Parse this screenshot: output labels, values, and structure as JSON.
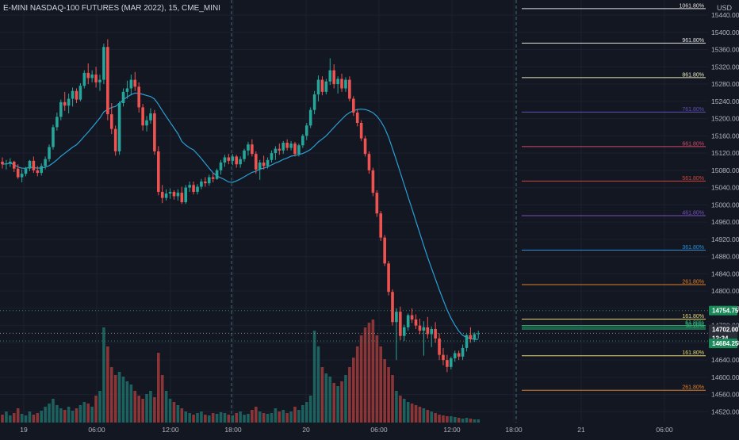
{
  "title": "E-MINI NASDAQ-100 FUTURES (MAR 2022), 15, CME_MINI",
  "currency": "USD",
  "colors": {
    "background": "#131722",
    "up": "#26a69a",
    "down": "#ef5350",
    "volume_up": "#1f6f68",
    "volume_down": "#a23b3b",
    "ma": "#2a9fd6",
    "grid": "#1c2030",
    "axis_text": "#b2b5be",
    "session_line": "#3d6f7a",
    "last_price_tag": "#26a69a",
    "level_tag": "#1b8a5a",
    "neutral_tag": "#2a2e39"
  },
  "chart_data": {
    "type": "candlestick",
    "symbol": "E-MINI NASDAQ-100 FUTURES (MAR 2022)",
    "interval": "15",
    "exchange": "CME_MINI",
    "ylim": [
      14495,
      15475
    ],
    "y_ticks": [
      15440,
      15400,
      15360,
      15320,
      15280,
      15240,
      15200,
      15160,
      15120,
      15080,
      15040,
      15000,
      14960,
      14920,
      14880,
      14840,
      14800,
      14760,
      14720,
      14680,
      14640,
      14600,
      14560,
      14520
    ],
    "x_ticks": [
      "19",
      "06:00",
      "12:00",
      "18:00",
      "20",
      "06:00",
      "12:00",
      "18:00",
      "21",
      "06:00"
    ],
    "session_markers": [
      "18:00",
      "18:00"
    ],
    "price_labels": [
      {
        "label": "14754.75",
        "value": 14754.75,
        "style": "level"
      },
      {
        "label": "14702.00",
        "value": 14702,
        "style": "last"
      },
      {
        "label": "12:34",
        "value": 14702,
        "style": "countdown"
      },
      {
        "label": "14684.25",
        "value": 14684.25,
        "style": "level"
      }
    ],
    "fib_levels": [
      {
        "label": "1061.80%",
        "value": 15455,
        "color": "#e0e0e0"
      },
      {
        "label": "961.80%",
        "value": 15375,
        "color": "#e0e0e0"
      },
      {
        "label": "861.80%",
        "value": 15295,
        "color": "#e8e8c0"
      },
      {
        "label": "761.80%",
        "value": 15215,
        "color": "#5c4fb0"
      },
      {
        "label": "661.80%",
        "value": 15135,
        "color": "#d04a6a"
      },
      {
        "label": "561.80%",
        "value": 15055,
        "color": "#d0443a"
      },
      {
        "label": "461.80%",
        "value": 14975,
        "color": "#7a4fc0"
      },
      {
        "label": "361.80%",
        "value": 14895,
        "color": "#2a8fd6"
      },
      {
        "label": "261.80%",
        "value": 14815,
        "color": "#e0802a"
      },
      {
        "label": "161.80%",
        "value": 14735,
        "color": "#e8d870"
      },
      {
        "label": "61.80%",
        "value": 14720,
        "color": "#2fb87a"
      },
      {
        "label": "50.00%",
        "value": 14716,
        "color": "#2fb87a"
      },
      {
        "label": "38.20%",
        "value": 14712,
        "color": "#2fb87a"
      },
      {
        "label": "161.80%",
        "value": 14650,
        "color": "#e8d870"
      },
      {
        "label": "261.80%",
        "value": 14570,
        "color": "#e0802a"
      }
    ],
    "candles": [
      [
        15100,
        15110,
        15084,
        15094
      ],
      [
        15094,
        15104,
        15082,
        15096
      ],
      [
        15096,
        15108,
        15088,
        15100
      ],
      [
        15100,
        15102,
        15076,
        15084
      ],
      [
        15084,
        15094,
        15060,
        15064
      ],
      [
        15064,
        15082,
        15052,
        15072
      ],
      [
        15072,
        15088,
        15066,
        15084
      ],
      [
        15084,
        15104,
        15078,
        15102
      ],
      [
        15102,
        15112,
        15074,
        15080
      ],
      [
        15080,
        15090,
        15066,
        15074
      ],
      [
        15074,
        15096,
        15068,
        15090
      ],
      [
        15090,
        15112,
        15082,
        15106
      ],
      [
        15106,
        15140,
        15100,
        15134
      ],
      [
        15134,
        15186,
        15128,
        15180
      ],
      [
        15180,
        15214,
        15172,
        15204
      ],
      [
        15204,
        15244,
        15196,
        15238
      ],
      [
        15238,
        15262,
        15218,
        15230
      ],
      [
        15230,
        15258,
        15212,
        15246
      ],
      [
        15246,
        15272,
        15228,
        15264
      ],
      [
        15264,
        15270,
        15236,
        15244
      ],
      [
        15244,
        15282,
        15240,
        15276
      ],
      [
        15276,
        15312,
        15270,
        15306
      ],
      [
        15306,
        15328,
        15280,
        15294
      ],
      [
        15294,
        15312,
        15284,
        15302
      ],
      [
        15302,
        15320,
        15272,
        15284
      ],
      [
        15284,
        15302,
        15264,
        15290
      ],
      [
        15290,
        15374,
        15280,
        15366
      ],
      [
        15366,
        15384,
        15196,
        15210
      ],
      [
        15210,
        15236,
        15164,
        15176
      ],
      [
        15176,
        15184,
        15114,
        15124
      ],
      [
        15124,
        15240,
        15116,
        15236
      ],
      [
        15236,
        15270,
        15228,
        15262
      ],
      [
        15262,
        15288,
        15246,
        15270
      ],
      [
        15270,
        15302,
        15254,
        15290
      ],
      [
        15290,
        15308,
        15264,
        15274
      ],
      [
        15274,
        15284,
        15214,
        15226
      ],
      [
        15226,
        15234,
        15172,
        15184
      ],
      [
        15184,
        15206,
        15170,
        15196
      ],
      [
        15196,
        15224,
        15188,
        15212
      ],
      [
        15212,
        15220,
        15116,
        15124
      ],
      [
        15124,
        15136,
        15022,
        15030
      ],
      [
        15030,
        15046,
        15004,
        15016
      ],
      [
        15016,
        15036,
        15010,
        15026
      ],
      [
        15026,
        15038,
        15014,
        15030
      ],
      [
        15030,
        15034,
        15012,
        15020
      ],
      [
        15020,
        15036,
        15010,
        15028
      ],
      [
        15028,
        15042,
        15002,
        15006
      ],
      [
        15006,
        15046,
        15002,
        15040
      ],
      [
        15040,
        15054,
        15030,
        15046
      ],
      [
        15046,
        15054,
        15024,
        15030
      ],
      [
        15030,
        15048,
        15024,
        15042
      ],
      [
        15042,
        15060,
        15036,
        15054
      ],
      [
        15054,
        15064,
        15042,
        15050
      ],
      [
        15050,
        15070,
        15044,
        15064
      ],
      [
        15064,
        15074,
        15052,
        15060
      ],
      [
        15060,
        15084,
        15058,
        15080
      ],
      [
        15080,
        15104,
        15070,
        15098
      ],
      [
        15098,
        15116,
        15088,
        15110
      ],
      [
        15110,
        15118,
        15094,
        15102
      ],
      [
        15102,
        15118,
        15092,
        15112
      ],
      [
        15112,
        15116,
        15086,
        15094
      ],
      [
        15094,
        15112,
        15086,
        15106
      ],
      [
        15106,
        15130,
        15100,
        15126
      ],
      [
        15126,
        15146,
        15114,
        15140
      ],
      [
        15140,
        15152,
        15112,
        15118
      ],
      [
        15118,
        15124,
        15072,
        15082
      ],
      [
        15082,
        15104,
        15058,
        15098
      ],
      [
        15098,
        15114,
        15082,
        15090
      ],
      [
        15090,
        15110,
        15084,
        15104
      ],
      [
        15104,
        15126,
        15098,
        15120
      ],
      [
        15120,
        15136,
        15104,
        15130
      ],
      [
        15130,
        15142,
        15116,
        15126
      ],
      [
        15126,
        15148,
        15118,
        15144
      ],
      [
        15144,
        15152,
        15126,
        15132
      ],
      [
        15132,
        15148,
        15126,
        15142
      ],
      [
        15142,
        15146,
        15112,
        15118
      ],
      [
        15118,
        15142,
        15112,
        15138
      ],
      [
        15138,
        15164,
        15132,
        15160
      ],
      [
        15160,
        15190,
        15150,
        15184
      ],
      [
        15184,
        15226,
        15178,
        15220
      ],
      [
        15220,
        15264,
        15210,
        15256
      ],
      [
        15256,
        15300,
        15240,
        15290
      ],
      [
        15290,
        15298,
        15254,
        15262
      ],
      [
        15262,
        15292,
        15256,
        15286
      ],
      [
        15286,
        15340,
        15278,
        15312
      ],
      [
        15312,
        15326,
        15270,
        15280
      ],
      [
        15280,
        15298,
        15258,
        15292
      ],
      [
        15292,
        15304,
        15262,
        15270
      ],
      [
        15270,
        15296,
        15262,
        15290
      ],
      [
        15290,
        15298,
        15240,
        15246
      ],
      [
        15246,
        15252,
        15206,
        15214
      ],
      [
        15214,
        15222,
        15182,
        15190
      ],
      [
        15190,
        15196,
        15148,
        15154
      ],
      [
        15154,
        15160,
        15112,
        15118
      ],
      [
        15118,
        15124,
        15072,
        15080
      ],
      [
        15080,
        15086,
        15020,
        15028
      ],
      [
        15028,
        15034,
        14972,
        14980
      ],
      [
        14980,
        14986,
        14916,
        14924
      ],
      [
        14924,
        14930,
        14858,
        14864
      ],
      [
        14864,
        14870,
        14790,
        14798
      ],
      [
        14798,
        14804,
        14720,
        14728
      ],
      [
        14728,
        14760,
        14640,
        14752
      ],
      [
        14752,
        14764,
        14686,
        14696
      ],
      [
        14696,
        14722,
        14684,
        14716
      ],
      [
        14716,
        14748,
        14708,
        14744
      ],
      [
        14744,
        14760,
        14726,
        14734
      ],
      [
        14734,
        14746,
        14712,
        14720
      ],
      [
        14720,
        14736,
        14700,
        14708
      ],
      [
        14708,
        14730,
        14650,
        14716
      ],
      [
        14716,
        14740,
        14690,
        14700
      ],
      [
        14700,
        14718,
        14670,
        14712
      ],
      [
        14712,
        14728,
        14680,
        14690
      ],
      [
        14690,
        14702,
        14640,
        14652
      ],
      [
        14652,
        14668,
        14628,
        14640
      ],
      [
        14640,
        14652,
        14612,
        14624
      ],
      [
        14624,
        14648,
        14618,
        14644
      ],
      [
        14644,
        14662,
        14636,
        14656
      ],
      [
        14656,
        14662,
        14640,
        14648
      ],
      [
        14648,
        14676,
        14640,
        14668
      ],
      [
        14668,
        14700,
        14660,
        14698
      ],
      [
        14698,
        14716,
        14680,
        14688
      ],
      [
        14688,
        14704,
        14682,
        14700
      ],
      [
        14700,
        14708,
        14690,
        14702
      ]
    ],
    "volume": [
      10,
      14,
      9,
      12,
      18,
      11,
      9,
      14,
      10,
      12,
      15,
      20,
      24,
      30,
      22,
      18,
      16,
      20,
      15,
      18,
      22,
      26,
      24,
      20,
      34,
      40,
      120,
      96,
      70,
      60,
      64,
      58,
      52,
      48,
      40,
      34,
      30,
      36,
      40,
      32,
      88,
      60,
      40,
      30,
      26,
      22,
      18,
      14,
      12,
      10,
      12,
      14,
      10,
      9,
      12,
      11,
      13,
      12,
      10,
      9,
      12,
      14,
      10,
      11,
      16,
      20,
      14,
      12,
      11,
      12,
      18,
      14,
      16,
      12,
      14,
      20,
      16,
      22,
      26,
      34,
      116,
      96,
      70,
      62,
      58,
      50,
      46,
      52,
      60,
      70,
      82,
      96,
      110,
      120,
      126,
      130,
      110,
      96,
      80,
      70,
      60,
      40,
      34,
      30,
      26,
      24,
      22,
      20,
      18,
      16,
      14,
      12,
      10,
      9,
      8,
      8,
      7,
      6,
      5,
      6,
      5,
      4,
      4
    ]
  }
}
